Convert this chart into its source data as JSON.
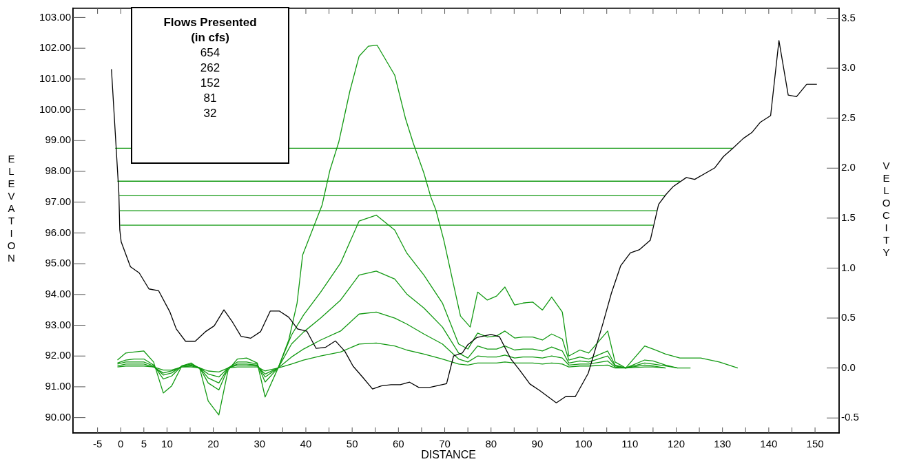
{
  "chart_data": {
    "type": "line",
    "xlabel": "DISTANCE",
    "ylabel": "ELEVATION",
    "y2label": "VELOCITY",
    "annotations": [
      "Flows Presented\n(in cfs)\n654\n262\n152\n81\n32"
    ],
    "xlim": [
      -10.3,
      155.2
    ],
    "xticks": [
      -5,
      0,
      5,
      10,
      {
        "value": 15,
        "label": null
      },
      20,
      {
        "value": 25,
        "label": null
      },
      30,
      {
        "value": 35,
        "label": null
      },
      40,
      {
        "value": 45,
        "label": null
      },
      50,
      {
        "value": 55,
        "label": null
      },
      60,
      {
        "value": 65,
        "label": null
      },
      70,
      {
        "value": 75,
        "label": null
      },
      80,
      {
        "value": 85,
        "label": null
      },
      90,
      {
        "value": 95,
        "label": null
      },
      100,
      {
        "value": 105,
        "label": null
      },
      110,
      {
        "value": 115,
        "label": null
      },
      120,
      {
        "value": 125,
        "label": null
      },
      130,
      {
        "value": 135,
        "label": null
      },
      140,
      {
        "value": 145,
        "label": null
      },
      150
    ],
    "ylim": [
      89.5,
      103.3
    ],
    "yticks": [
      {
        "value": 90,
        "label": "90.00"
      },
      {
        "value": 91,
        "label": "91.00"
      },
      {
        "value": 92,
        "label": "92.00"
      },
      {
        "value": 93,
        "label": "93.00"
      },
      {
        "value": 94,
        "label": "94.00"
      },
      {
        "value": 95,
        "label": "95.00"
      },
      {
        "value": 96,
        "label": "96.00"
      },
      {
        "value": 97,
        "label": "97.00"
      },
      {
        "value": 98,
        "label": "98.00"
      },
      {
        "value": 99,
        "label": "99.00"
      },
      {
        "value": 100,
        "label": "100.00"
      },
      {
        "value": 101,
        "label": "101.00"
      },
      {
        "value": 102,
        "label": "102.00"
      },
      {
        "value": 103,
        "label": "103.00"
      }
    ],
    "y2lim": [
      -0.65,
      3.6
    ],
    "y2ticks": [
      -0.5,
      {
        "value": 0,
        "label": "0.0"
      },
      0.5,
      {
        "value": 1,
        "label": "1.0"
      },
      1.5,
      {
        "value": 2,
        "label": "2.0"
      },
      2.5,
      {
        "value": 3,
        "label": "3.0"
      },
      3.5
    ],
    "grid": false,
    "legend": false,
    "marker": "none",
    "line_style": "solid",
    "series": [
      {
        "color": "#000000",
        "x": [
          -2.0,
          -0.4,
          -0.2,
          0.1,
          2.1,
          4.0,
          6.1,
          8.2,
          10.6,
          12.0,
          14.0,
          16.1,
          18.3,
          20.2,
          22.3,
          24.2,
          26.0,
          28.1,
          30.2,
          32.3,
          34.3,
          36.3,
          38.2,
          40.2,
          42.2,
          44.2,
          46.4,
          48.4,
          50.2,
          52.4,
          54.4,
          56.3,
          58.4,
          60.4,
          62.4,
          64.4,
          66.7,
          70.4,
          71.9,
          73.8,
          75.0,
          76.9,
          80.0,
          81.8,
          84.3,
          86.2,
          88.4,
          90.5,
          94.1,
          96.1,
          98.2,
          101.0,
          104.2,
          106.0,
          108.0,
          110.1,
          112.1,
          114.4,
          116.2,
          117.8,
          119.3,
          122.2,
          124.0,
          128.3,
          130.2,
          132.1,
          134.5,
          136.4,
          138.2,
          140.4,
          142.2,
          144.2,
          146.0,
          148.2,
          150.4
        ],
        "values": [
          101.32,
          97.3,
          96.1,
          95.71,
          94.9,
          94.7,
          94.18,
          94.12,
          93.44,
          92.88,
          92.48,
          92.48,
          92.79,
          92.98,
          93.5,
          93.09,
          92.64,
          92.58,
          92.79,
          93.46,
          93.46,
          93.26,
          92.88,
          92.81,
          92.25,
          92.28,
          92.49,
          92.16,
          91.67,
          91.29,
          90.93,
          91.03,
          91.07,
          91.07,
          91.15,
          90.98,
          90.98,
          91.1,
          92.0,
          92.1,
          92.37,
          92.6,
          92.7,
          92.63,
          91.9,
          91.54,
          91.09,
          90.88,
          90.48,
          90.68,
          90.68,
          91.44,
          93.07,
          94.04,
          94.93,
          95.35,
          95.46,
          95.76,
          96.93,
          97.25,
          97.5,
          97.8,
          97.74,
          98.11,
          98.48,
          98.73,
          99.07,
          99.27,
          99.6,
          99.81,
          102.25,
          100.48,
          100.43,
          100.83,
          100.83
        ]
      },
      {
        "color": "#119911",
        "x": [
          -1.2,
          132.1
        ],
        "values": [
          98.75,
          98.75
        ]
      },
      {
        "color": "#119911",
        "x": [
          -0.7,
          120.8
        ],
        "values": [
          97.68,
          97.68
        ]
      },
      {
        "color": "#119911",
        "x": [
          -0.3,
          117.7
        ],
        "values": [
          97.21,
          97.21
        ]
      },
      {
        "color": "#119911",
        "x": [
          -0.2,
          115.8
        ],
        "values": [
          96.72,
          96.72
        ]
      },
      {
        "color": "#119911",
        "x": [
          -0.1,
          115.0
        ],
        "values": [
          96.25,
          96.25
        ]
      },
      {
        "color": "#119911",
        "axis": "y2",
        "x": [
          -0.7,
          1.1,
          2.9,
          5.0,
          7.1,
          9.2,
          11.0,
          13.2,
          15.2,
          17.1,
          18.9,
          21.2,
          23.2,
          25.2,
          27.2,
          29.5,
          31.2,
          34.0,
          36.3,
          38.1,
          39.3,
          43.5,
          45.2,
          47.1,
          49.5,
          51.5,
          53.5,
          55.4,
          59.2,
          61.5,
          63.2,
          65.5,
          67.0,
          68.1,
          69.8,
          71.5,
          73.4,
          75.5,
          77.1,
          79.2,
          81.2,
          83.0,
          85.1,
          86.9,
          89.0,
          91.1,
          93.1,
          95.4,
          96.8,
          99.2,
          101.1,
          105.2,
          106.8,
          109.1,
          113.2,
          115.0,
          117.7,
          120.8,
          125.3,
          129.3,
          133.3
        ],
        "values": [
          0.08,
          0.15,
          0.16,
          0.17,
          0.06,
          -0.25,
          -0.18,
          0.02,
          0.05,
          -0.01,
          -0.33,
          -0.47,
          -0.02,
          0.09,
          0.1,
          0.05,
          -0.29,
          0.0,
          0.28,
          0.65,
          1.13,
          1.63,
          1.98,
          2.26,
          2.77,
          3.12,
          3.22,
          3.23,
          2.93,
          2.5,
          2.25,
          1.95,
          1.71,
          1.58,
          1.28,
          0.92,
          0.52,
          0.41,
          0.76,
          0.68,
          0.72,
          0.81,
          0.63,
          0.65,
          0.66,
          0.58,
          0.71,
          0.56,
          0.12,
          0.18,
          0.15,
          0.37,
          0.06,
          0.0,
          0.22,
          0.19,
          0.14,
          0.1,
          0.1,
          0.06,
          0.0
        ]
      },
      {
        "color": "#119911",
        "axis": "y2",
        "x": [
          -0.7,
          1.1,
          2.9,
          5.0,
          7.1,
          9.2,
          11.0,
          13.2,
          15.2,
          17.1,
          18.9,
          21.2,
          23.2,
          25.2,
          27.2,
          29.5,
          31.2,
          34.0,
          36.9,
          39.5,
          43.2,
          47.5,
          51.5,
          55.2,
          59.2,
          61.8,
          65.5,
          69.5,
          73.0,
          75.0,
          77.1,
          79.2,
          81.2,
          83.0,
          85.1,
          86.9,
          89.0,
          91.1,
          93.1,
          95.4,
          96.8,
          99.2,
          101.1,
          105.2,
          106.8,
          109.1,
          113.2,
          115.0,
          117.7,
          120.3,
          123.1
        ],
        "values": [
          0.05,
          0.08,
          0.09,
          0.09,
          0.03,
          -0.11,
          -0.08,
          0.02,
          0.04,
          0.0,
          -0.15,
          -0.22,
          0.0,
          0.06,
          0.06,
          0.04,
          -0.14,
          0.0,
          0.33,
          0.53,
          0.76,
          1.05,
          1.47,
          1.53,
          1.38,
          1.15,
          0.93,
          0.65,
          0.24,
          0.19,
          0.35,
          0.31,
          0.32,
          0.37,
          0.3,
          0.31,
          0.31,
          0.28,
          0.34,
          0.29,
          0.08,
          0.11,
          0.09,
          0.17,
          0.03,
          0.0,
          0.08,
          0.07,
          0.03,
          0.0,
          0.0
        ]
      },
      {
        "color": "#119911",
        "axis": "y2",
        "x": [
          -0.7,
          1.1,
          2.9,
          5.0,
          7.1,
          9.2,
          11.0,
          13.2,
          15.2,
          17.1,
          18.9,
          21.2,
          23.2,
          25.2,
          27.2,
          29.5,
          31.2,
          34.0,
          36.9,
          39.5,
          43.2,
          47.5,
          51.5,
          55.2,
          59.2,
          61.8,
          65.5,
          69.5,
          73.0,
          75.0,
          77.1,
          79.2,
          81.2,
          83.0,
          85.1,
          86.9,
          89.0,
          91.1,
          93.1,
          95.4,
          96.8,
          99.2,
          101.1,
          105.2,
          106.8,
          109.1,
          113.2,
          115.0,
          117.7,
          120.3
        ],
        "values": [
          0.04,
          0.06,
          0.06,
          0.06,
          0.02,
          -0.07,
          -0.05,
          0.02,
          0.03,
          0.0,
          -0.1,
          -0.15,
          0.0,
          0.04,
          0.04,
          0.03,
          -0.09,
          0.0,
          0.24,
          0.36,
          0.5,
          0.68,
          0.93,
          0.97,
          0.89,
          0.74,
          0.6,
          0.41,
          0.15,
          0.1,
          0.22,
          0.19,
          0.19,
          0.22,
          0.18,
          0.19,
          0.19,
          0.17,
          0.21,
          0.17,
          0.05,
          0.07,
          0.06,
          0.12,
          0.02,
          0.0,
          0.05,
          0.04,
          0.02,
          0.0
        ]
      },
      {
        "color": "#119911",
        "axis": "y2",
        "x": [
          -0.7,
          1.1,
          2.9,
          5.0,
          7.1,
          9.2,
          11.0,
          13.2,
          15.2,
          17.1,
          18.9,
          21.2,
          23.2,
          25.2,
          27.2,
          29.5,
          31.2,
          34.0,
          36.9,
          39.5,
          43.2,
          47.5,
          51.5,
          55.2,
          59.2,
          61.8,
          65.5,
          69.5,
          73.0,
          75.0,
          77.1,
          79.2,
          81.2,
          83.0,
          85.1,
          86.9,
          89.0,
          91.1,
          93.1,
          95.4,
          96.8,
          99.2,
          101.1,
          105.2,
          106.8,
          109.1,
          113.2,
          115.0,
          117.7
        ],
        "values": [
          0.02,
          0.04,
          0.04,
          0.04,
          0.01,
          -0.05,
          -0.03,
          0.01,
          0.02,
          0.0,
          -0.06,
          -0.09,
          0.0,
          0.03,
          0.03,
          0.02,
          -0.06,
          0.0,
          0.11,
          0.19,
          0.28,
          0.37,
          0.54,
          0.56,
          0.5,
          0.44,
          0.34,
          0.24,
          0.09,
          0.06,
          0.12,
          0.11,
          0.11,
          0.13,
          0.1,
          0.11,
          0.11,
          0.1,
          0.12,
          0.1,
          0.03,
          0.04,
          0.04,
          0.07,
          0.01,
          0.0,
          0.03,
          0.02,
          0.0
        ]
      },
      {
        "color": "#119911",
        "axis": "y2",
        "x": [
          -0.7,
          1.1,
          2.9,
          5.0,
          7.1,
          9.2,
          11.0,
          13.2,
          15.2,
          17.1,
          18.9,
          21.2,
          23.2,
          25.2,
          27.2,
          29.5,
          31.2,
          34.0,
          36.9,
          39.5,
          43.2,
          47.5,
          51.5,
          55.2,
          59.2,
          61.8,
          65.5,
          69.5,
          73.0,
          75.0,
          77.1,
          79.2,
          81.2,
          83.0,
          85.1,
          86.9,
          89.0,
          91.1,
          93.1,
          95.4,
          96.8,
          99.2,
          101.1,
          105.2,
          106.8,
          109.1,
          113.2,
          115.0,
          117.7
        ],
        "values": [
          0.01,
          0.02,
          0.02,
          0.02,
          0.01,
          -0.02,
          -0.02,
          0.01,
          0.01,
          0.0,
          -0.03,
          -0.04,
          0.0,
          0.01,
          0.01,
          0.01,
          -0.03,
          0.0,
          0.04,
          0.08,
          0.12,
          0.16,
          0.24,
          0.25,
          0.22,
          0.18,
          0.14,
          0.09,
          0.04,
          0.03,
          0.05,
          0.05,
          0.05,
          0.06,
          0.05,
          0.05,
          0.05,
          0.04,
          0.05,
          0.04,
          0.01,
          0.02,
          0.02,
          0.03,
          0.0,
          0.0,
          0.01,
          0.01,
          0.0
        ]
      }
    ]
  }
}
